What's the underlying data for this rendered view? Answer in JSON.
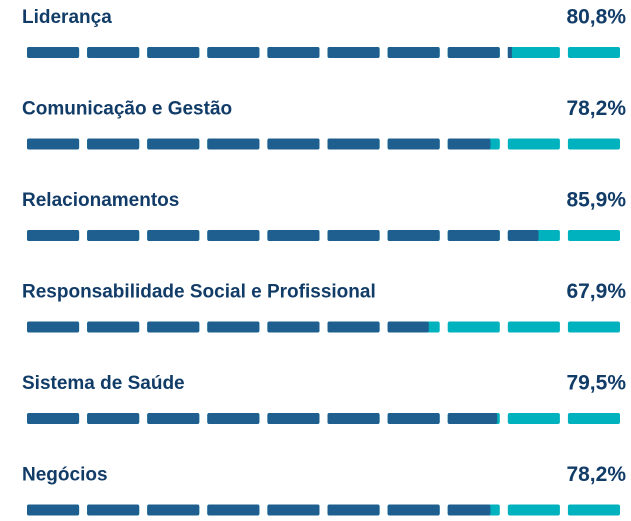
{
  "xlim": [
    0,
    100
  ],
  "fill_color": "#1f5f8f",
  "track_color": "#00b2be",
  "items": [
    {
      "label": "Liderança",
      "value": 80.8,
      "value_label": "80,8%"
    },
    {
      "label": "Comunicação e Gestão",
      "value": 78.2,
      "value_label": "78,2%"
    },
    {
      "label": "Relacionamentos",
      "value": 85.9,
      "value_label": "85,9%"
    },
    {
      "label": "Responsabilidade Social e Profissional",
      "value": 67.9,
      "value_label": "67,9%"
    },
    {
      "label": "Sistema de Saúde",
      "value": 79.5,
      "value_label": "79,5%"
    },
    {
      "label": "Negócios",
      "value": 78.2,
      "value_label": "78,2%"
    }
  ]
}
